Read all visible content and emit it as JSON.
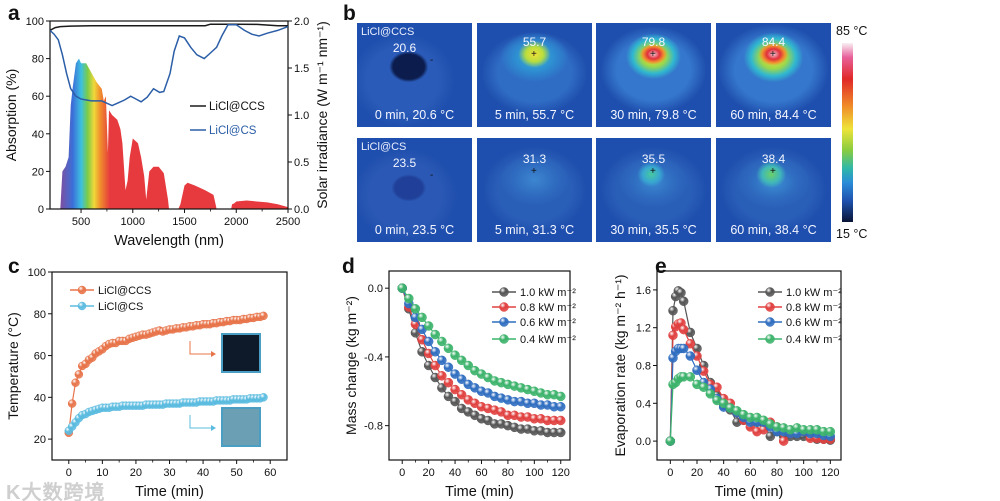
{
  "panel_letters": {
    "a": "a",
    "b": "b",
    "c": "c",
    "d": "d",
    "e": "e"
  },
  "watermark": "K大数跨境",
  "colors": {
    "ccs_black": "#1a1a1a",
    "cs_blue": "#2b5ea7",
    "ccs_orange": "#e8744a",
    "cs_cyan": "#5bbce0",
    "p10": "#555555",
    "p08": "#e0403f",
    "p06": "#2f6dc0",
    "p04": "#3cb36b"
  },
  "thermal": {
    "rows": [
      {
        "sample": "LiCl@CCS",
        "images": [
          {
            "spot": "20.6",
            "caption": "0 min, 20.6 °C"
          },
          {
            "spot": "55.7",
            "caption": "5 min, 55.7 °C"
          },
          {
            "spot": "79.8",
            "caption": "30 min, 79.8 °C"
          },
          {
            "spot": "84.4",
            "caption": "60 min, 84.4 °C"
          }
        ]
      },
      {
        "sample": "LiCl@CS",
        "images": [
          {
            "spot": "23.5",
            "caption": "0 min, 23.5 °C"
          },
          {
            "spot": "31.3",
            "caption": "5 min, 31.3 °C"
          },
          {
            "spot": "35.5",
            "caption": "30 min, 35.5 °C"
          },
          {
            "spot": "38.4",
            "caption": "60 min, 38.4 °C"
          }
        ]
      }
    ],
    "colorbar": {
      "max": "85 °C",
      "min": "15 °C"
    }
  },
  "chart_data": [
    {
      "id": "a",
      "type": "line",
      "xlabel": "Wavelength (nm)",
      "ylabel": "Absorption (%)",
      "y2label": "Solar irradiance (W m⁻¹ nm⁻¹)",
      "xlim": [
        200,
        2500
      ],
      "ylim": [
        0,
        100
      ],
      "y2lim": [
        0,
        2.0
      ],
      "xticks": [
        500,
        1000,
        1500,
        2000,
        2500
      ],
      "yticks": [
        0,
        20,
        40,
        60,
        80,
        100
      ],
      "y2ticks": [
        "0.0",
        "0.5",
        "1.0",
        "1.5",
        "2.0"
      ],
      "legend_position": "center-right",
      "series": [
        {
          "name": "LiCl@CCS",
          "color_key": "ccs_black",
          "x": [
            200,
            250,
            300,
            400,
            600,
            1000,
            1500,
            1700,
            1750,
            2000,
            2200,
            2400,
            2500
          ],
          "y": [
            95,
            96.5,
            97,
            97.3,
            97.5,
            97.5,
            97.5,
            97.5,
            98.3,
            98.3,
            98.2,
            97.5,
            97.5
          ]
        },
        {
          "name": "LiCl@CS",
          "color_key": "cs_blue",
          "x": [
            200,
            240,
            280,
            320,
            360,
            400,
            450,
            500,
            600,
            700,
            760,
            800,
            860,
            920,
            980,
            1030,
            1080,
            1140,
            1200,
            1260,
            1300,
            1360,
            1400,
            1450,
            1500,
            1560,
            1620,
            1690,
            1750,
            1810,
            1860,
            1920,
            2000,
            2080,
            2150,
            2220,
            2300,
            2400,
            2500
          ],
          "y": [
            95,
            93,
            90,
            82,
            72,
            64,
            60,
            58.5,
            57.5,
            57.5,
            56,
            55,
            56.5,
            58,
            60,
            58.5,
            57,
            59.5,
            64,
            62,
            62.5,
            72,
            84,
            92,
            91,
            86,
            82,
            80,
            83,
            86,
            92,
            98,
            98,
            95,
            93,
            92,
            93.5,
            95,
            97
          ]
        },
        {
          "name": "Solar irradiance (AM 1.5)",
          "type": "area",
          "axis": "y2",
          "x": [
            300,
            320,
            350,
            380,
            400,
            420,
            450,
            480,
            500,
            550,
            600,
            650,
            700,
            720,
            740,
            760,
            770,
            800,
            850,
            880,
            900,
            930,
            950,
            970,
            1000,
            1050,
            1080,
            1110,
            1130,
            1160,
            1200,
            1250,
            1300,
            1340,
            1350,
            1440,
            1460,
            1500,
            1530,
            1600,
            1700,
            1780,
            1800,
            1810,
            1950,
            1960,
            1980,
            2000,
            2100,
            2200,
            2300,
            2400,
            2500
          ],
          "y": [
            0,
            0.4,
            0.45,
            0.55,
            1.1,
            1.3,
            1.55,
            1.6,
            1.55,
            1.55,
            1.45,
            1.35,
            1.28,
            1.15,
            1.2,
            0.6,
            1.05,
            1.0,
            0.95,
            0.85,
            0.7,
            0.2,
            0.3,
            0.55,
            0.75,
            0.7,
            0.55,
            0.35,
            0.1,
            0.4,
            0.45,
            0.45,
            0.38,
            0.1,
            0,
            0,
            0.05,
            0.25,
            0.28,
            0.25,
            0.2,
            0.15,
            0.05,
            0,
            0,
            0.05,
            0.06,
            0.08,
            0.09,
            0.08,
            0.07,
            0.05,
            0.02
          ]
        }
      ]
    },
    {
      "id": "c",
      "type": "line",
      "xlabel": "Time (min)",
      "ylabel": "Temperature (°C)",
      "xlim": [
        -5,
        65
      ],
      "ylim": [
        10,
        100
      ],
      "xticks": [
        0,
        10,
        20,
        30,
        40,
        50,
        60
      ],
      "yticks": [
        20,
        40,
        60,
        80,
        100
      ],
      "legend_position": "top-left",
      "series": [
        {
          "name": "LiCl@CCS",
          "color_key": "ccs_orange",
          "y": [
            23,
            37,
            47,
            51,
            55,
            56,
            58,
            59,
            61,
            62,
            63,
            64.5,
            65.5,
            66,
            66,
            67,
            67,
            67,
            68,
            68.5,
            69,
            69.5,
            70,
            70,
            70.5,
            71,
            71.5,
            72,
            71.5,
            72,
            72.5,
            72.5,
            73,
            73,
            73.5,
            73.5,
            74,
            74,
            74.5,
            74.5,
            75,
            75,
            75,
            75.5,
            75.5,
            76,
            76,
            76.5,
            76.5,
            77,
            77,
            77,
            77.5,
            77.5,
            78,
            78,
            78.5,
            78.5,
            79
          ]
        },
        {
          "name": "LiCl@CS",
          "color_key": "cs_cyan",
          "y": [
            24,
            26,
            28,
            30,
            31.5,
            32,
            33,
            33.5,
            34,
            34.5,
            35,
            35,
            35,
            35.5,
            35.5,
            35.5,
            36,
            36,
            36,
            36,
            36,
            36,
            36,
            36.5,
            36.5,
            36.5,
            36.5,
            36.5,
            36.5,
            37,
            37,
            37,
            37,
            37,
            37.5,
            37.5,
            37.5,
            37.5,
            37.5,
            38,
            38,
            38,
            38,
            38,
            38.5,
            38.5,
            38.5,
            38.5,
            38.5,
            39,
            39,
            39,
            39,
            39,
            39.5,
            39.5,
            39.5,
            39.5,
            40
          ]
        }
      ]
    },
    {
      "id": "d",
      "type": "line",
      "xlabel": "Time (min)",
      "ylabel": "Mass change (kg m⁻²)",
      "xlim": [
        -10,
        127
      ],
      "ylim": [
        -1.0,
        0.1
      ],
      "xticks": [
        0,
        20,
        40,
        60,
        80,
        100,
        120
      ],
      "yticks": [
        -0.8,
        -0.4,
        0.0
      ],
      "ytick_labels": [
        "-0.8",
        "-0.4",
        "0.0"
      ],
      "legend_position": "top-right",
      "x": [
        0,
        5,
        10,
        15,
        20,
        25,
        30,
        35,
        40,
        45,
        50,
        55,
        60,
        65,
        70,
        75,
        80,
        85,
        90,
        95,
        100,
        105,
        110,
        115,
        120
      ],
      "series": [
        {
          "name": "1.0 kW m⁻²",
          "color_key": "p10",
          "y": [
            0,
            -0.12,
            -0.26,
            -0.37,
            -0.45,
            -0.52,
            -0.58,
            -0.63,
            -0.66,
            -0.7,
            -0.72,
            -0.74,
            -0.76,
            -0.77,
            -0.79,
            -0.79,
            -0.8,
            -0.81,
            -0.82,
            -0.82,
            -0.83,
            -0.83,
            -0.84,
            -0.84,
            -0.84
          ]
        },
        {
          "name": "0.8 kW m⁻²",
          "color_key": "p08",
          "y": [
            0,
            -0.11,
            -0.21,
            -0.3,
            -0.38,
            -0.45,
            -0.51,
            -0.55,
            -0.59,
            -0.62,
            -0.65,
            -0.67,
            -0.69,
            -0.7,
            -0.71,
            -0.72,
            -0.74,
            -0.74,
            -0.75,
            -0.75,
            -0.76,
            -0.76,
            -0.77,
            -0.77,
            -0.77
          ]
        },
        {
          "name": "0.6 kW m⁻²",
          "color_key": "p06",
          "y": [
            0,
            -0.09,
            -0.17,
            -0.24,
            -0.31,
            -0.37,
            -0.42,
            -0.46,
            -0.5,
            -0.53,
            -0.56,
            -0.58,
            -0.6,
            -0.61,
            -0.63,
            -0.64,
            -0.65,
            -0.66,
            -0.66,
            -0.67,
            -0.67,
            -0.68,
            -0.68,
            -0.69,
            -0.69
          ]
        },
        {
          "name": "0.4 kW m⁻²",
          "color_key": "p04",
          "y": [
            0,
            -0.06,
            -0.12,
            -0.17,
            -0.22,
            -0.27,
            -0.31,
            -0.35,
            -0.39,
            -0.42,
            -0.45,
            -0.48,
            -0.5,
            -0.52,
            -0.54,
            -0.55,
            -0.56,
            -0.57,
            -0.58,
            -0.59,
            -0.6,
            -0.61,
            -0.62,
            -0.62,
            -0.63
          ]
        }
      ]
    },
    {
      "id": "e",
      "type": "line",
      "xlabel": "Time (min)",
      "ylabel": "Evaporation rate (kg m⁻² h⁻¹)",
      "xlim": [
        -10,
        128
      ],
      "ylim": [
        -0.2,
        1.8
      ],
      "xticks": [
        0,
        20,
        40,
        60,
        80,
        100,
        120
      ],
      "yticks": [
        0,
        0.4,
        0.8,
        1.2,
        1.6
      ],
      "ytick_labels": [
        "0.0",
        "0.4",
        "0.8",
        "1.2",
        "1.6"
      ],
      "legend_position": "top-right",
      "x": [
        0,
        2,
        4,
        6,
        8,
        10,
        15,
        20,
        25,
        30,
        35,
        40,
        45,
        50,
        55,
        60,
        65,
        70,
        75,
        80,
        85,
        90,
        95,
        100,
        105,
        110,
        115,
        120
      ],
      "series": [
        {
          "name": "1.0 kW m⁻²",
          "color_key": "p10",
          "y": [
            0,
            1.38,
            1.53,
            1.59,
            1.57,
            1.48,
            1.15,
            0.98,
            0.8,
            0.62,
            0.48,
            0.38,
            0.33,
            0.2,
            0.22,
            0.2,
            0.2,
            0.18,
            0.05,
            0.1,
            0.05,
            0.05,
            0.05,
            0.05,
            0.05,
            0.02,
            0.02,
            0.01
          ]
        },
        {
          "name": "0.8 kW m⁻²",
          "color_key": "p08",
          "y": [
            0,
            1.12,
            1.21,
            1.24,
            1.25,
            1.18,
            1.03,
            0.9,
            0.74,
            0.6,
            0.57,
            0.45,
            0.4,
            0.3,
            0.22,
            0.15,
            0.1,
            0.12,
            0.2,
            0.15,
            0.0,
            0.08,
            0.1,
            0.1,
            0.03,
            0.03,
            0.02,
            0.02
          ]
        },
        {
          "name": "0.6 kW m⁻²",
          "color_key": "p06",
          "y": [
            0,
            0.88,
            0.95,
            0.98,
            0.98,
            0.98,
            0.9,
            0.75,
            0.62,
            0.55,
            0.45,
            0.36,
            0.35,
            0.3,
            0.25,
            0.2,
            0.2,
            0.2,
            0.15,
            0.1,
            0.1,
            0.08,
            0.08,
            0.1,
            0.08,
            0.08,
            0.06,
            0.05
          ]
        },
        {
          "name": "0.4 kW m⁻²",
          "color_key": "p04",
          "y": [
            0,
            0.6,
            0.62,
            0.66,
            0.68,
            0.68,
            0.68,
            0.6,
            0.57,
            0.5,
            0.43,
            0.4,
            0.35,
            0.32,
            0.28,
            0.25,
            0.25,
            0.22,
            0.18,
            0.15,
            0.14,
            0.12,
            0.14,
            0.12,
            0.12,
            0.12,
            0.1,
            0.1
          ]
        }
      ]
    }
  ]
}
